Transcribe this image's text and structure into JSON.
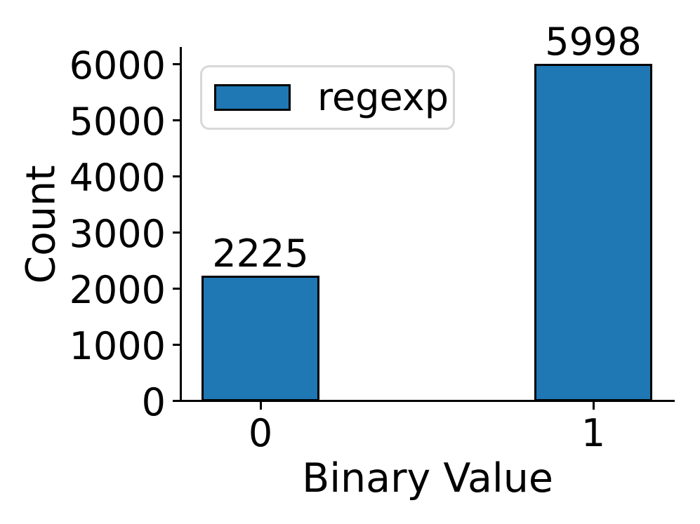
{
  "figure": {
    "background_color": "#ffffff",
    "text_color": "#000000"
  },
  "chart_data": {
    "type": "bar",
    "title": "",
    "xlabel": "Binary Value",
    "ylabel": "Count",
    "categories": [
      "0",
      "1"
    ],
    "series": [
      {
        "name": "regexp",
        "values": [
          2225,
          5998
        ]
      }
    ],
    "bar_value_labels": [
      "2225",
      "5998"
    ],
    "bar_color": "#1f77b4",
    "bar_edge_color": "#000000",
    "ylim": [
      0,
      6300
    ],
    "yticks": [
      0,
      1000,
      2000,
      3000,
      4000,
      5000,
      6000
    ],
    "ytick_labels": [
      "0",
      "1000",
      "2000",
      "3000",
      "4000",
      "5000",
      "6000"
    ],
    "grid": false,
    "legend": {
      "entries": [
        "regexp"
      ],
      "position": "upper left",
      "frame_color": "#d8d8d8"
    }
  }
}
